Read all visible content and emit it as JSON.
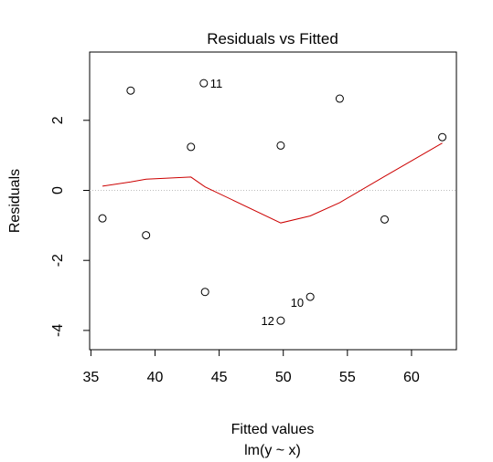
{
  "chart_data": {
    "type": "scatter",
    "title": "Residuals vs Fitted",
    "xlabel": "Fitted values",
    "xlabel_sub": "lm(y ~ x)",
    "ylabel": "Residuals",
    "xlim": [
      34.9,
      63.5
    ],
    "ylim": [
      -4.55,
      3.95
    ],
    "x_ticks": [
      35,
      40,
      45,
      50,
      55,
      60
    ],
    "y_ticks": [
      -4,
      -2,
      0,
      2
    ],
    "grid": false,
    "reference_line": {
      "y": 0,
      "style": "dotted",
      "color": "#bebebe"
    },
    "points": [
      {
        "x": 35.9,
        "y": -0.8
      },
      {
        "x": 38.1,
        "y": 2.85
      },
      {
        "x": 39.3,
        "y": -1.28
      },
      {
        "x": 42.8,
        "y": 1.24
      },
      {
        "x": 43.8,
        "y": 3.06,
        "label": "11"
      },
      {
        "x": 43.9,
        "y": -2.9
      },
      {
        "x": 49.8,
        "y": 1.28
      },
      {
        "x": 49.8,
        "y": -3.72,
        "label": "12"
      },
      {
        "x": 52.1,
        "y": -3.04,
        "label": "10"
      },
      {
        "x": 54.4,
        "y": 2.62
      },
      {
        "x": 57.9,
        "y": -0.83
      },
      {
        "x": 62.4,
        "y": 1.52
      }
    ],
    "smooth_line": {
      "color": "#cc0000",
      "x": [
        35.9,
        38.1,
        39.3,
        42.8,
        43.9,
        49.8,
        52.1,
        54.4,
        57.9,
        62.4
      ],
      "y": [
        0.12,
        0.24,
        0.32,
        0.38,
        0.1,
        -0.93,
        -0.73,
        -0.35,
        0.4,
        1.35
      ]
    }
  }
}
